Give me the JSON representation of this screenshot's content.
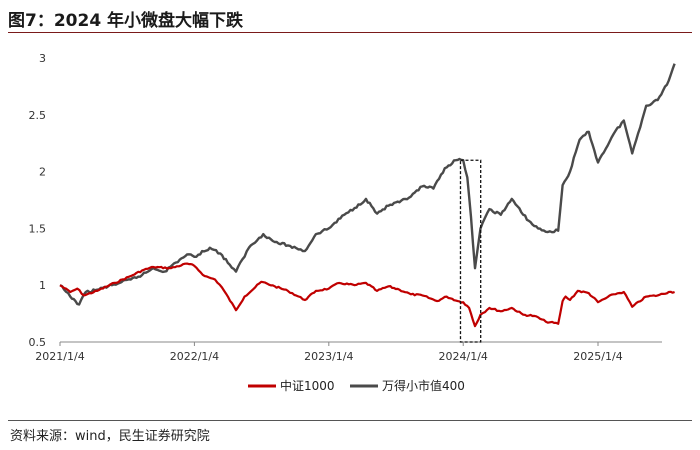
{
  "title": "图7：2024 年小微盘大幅下跌",
  "source": "资料来源：wind，民生证券研究院",
  "chart_data": {
    "type": "line",
    "title": "",
    "xlabel": "",
    "ylabel": "",
    "ylim": [
      0.5,
      3.0
    ],
    "yticks": [
      "0.5",
      "1",
      "1.5",
      "2",
      "2.5",
      "3"
    ],
    "xticks": [
      {
        "label": "2021/1/4",
        "date": "2021-01-04"
      },
      {
        "label": "2022/1/4",
        "date": "2022-01-04"
      },
      {
        "label": "2023/1/4",
        "date": "2023-01-04"
      },
      {
        "label": "2024/1/4",
        "date": "2024-01-04"
      },
      {
        "label": "2025/1/4",
        "date": "2025-01-04"
      }
    ],
    "grid": false,
    "legend": "bottom-center",
    "annotation": "dashed-box around the early-2024 drawdown",
    "series": [
      {
        "name": "中证1000",
        "color": "#c00000",
        "points": [
          [
            "2021-01-04",
            1.0
          ],
          [
            "2021-02-01",
            0.94
          ],
          [
            "2021-02-20",
            0.97
          ],
          [
            "2021-03-10",
            0.91
          ],
          [
            "2021-04-15",
            0.95
          ],
          [
            "2021-06-01",
            1.02
          ],
          [
            "2021-07-15",
            1.08
          ],
          [
            "2021-08-15",
            1.13
          ],
          [
            "2021-09-15",
            1.16
          ],
          [
            "2021-11-01",
            1.15
          ],
          [
            "2021-12-15",
            1.19
          ],
          [
            "2022-01-04",
            1.17
          ],
          [
            "2022-02-01",
            1.08
          ],
          [
            "2022-03-01",
            1.05
          ],
          [
            "2022-03-20",
            0.98
          ],
          [
            "2022-04-27",
            0.78
          ],
          [
            "2022-05-20",
            0.9
          ],
          [
            "2022-07-05",
            1.03
          ],
          [
            "2022-08-10",
            0.99
          ],
          [
            "2022-09-15",
            0.95
          ],
          [
            "2022-10-31",
            0.87
          ],
          [
            "2022-11-30",
            0.95
          ],
          [
            "2023-01-04",
            0.97
          ],
          [
            "2023-02-01",
            1.02
          ],
          [
            "2023-03-15",
            1.0
          ],
          [
            "2023-04-15",
            1.02
          ],
          [
            "2023-05-15",
            0.95
          ],
          [
            "2023-06-15",
            0.99
          ],
          [
            "2023-07-15",
            0.96
          ],
          [
            "2023-08-15",
            0.92
          ],
          [
            "2023-09-15",
            0.91
          ],
          [
            "2023-10-25",
            0.86
          ],
          [
            "2023-11-20",
            0.9
          ],
          [
            "2023-12-20",
            0.86
          ],
          [
            "2024-01-04",
            0.85
          ],
          [
            "2024-01-20",
            0.8
          ],
          [
            "2024-02-05",
            0.64
          ],
          [
            "2024-02-20",
            0.74
          ],
          [
            "2024-03-15",
            0.8
          ],
          [
            "2024-04-15",
            0.77
          ],
          [
            "2024-05-15",
            0.8
          ],
          [
            "2024-06-15",
            0.74
          ],
          [
            "2024-07-15",
            0.73
          ],
          [
            "2024-08-15",
            0.68
          ],
          [
            "2024-09-18",
            0.66
          ],
          [
            "2024-09-30",
            0.86
          ],
          [
            "2024-10-08",
            0.9
          ],
          [
            "2024-10-20",
            0.87
          ],
          [
            "2024-11-10",
            0.95
          ],
          [
            "2024-12-10",
            0.93
          ],
          [
            "2025-01-04",
            0.85
          ],
          [
            "2025-02-15",
            0.92
          ],
          [
            "2025-03-15",
            0.94
          ],
          [
            "2025-04-07",
            0.81
          ],
          [
            "2025-05-15",
            0.9
          ],
          [
            "2025-06-15",
            0.91
          ],
          [
            "2025-07-15",
            0.94
          ],
          [
            "2025-07-31",
            0.94
          ]
        ]
      },
      {
        "name": "万得小市值400",
        "color": "#4a4a4a",
        "points": [
          [
            "2021-01-04",
            1.0
          ],
          [
            "2021-02-01",
            0.9
          ],
          [
            "2021-02-15",
            0.86
          ],
          [
            "2021-02-25",
            0.83
          ],
          [
            "2021-03-15",
            0.94
          ],
          [
            "2021-04-15",
            0.96
          ],
          [
            "2021-05-15",
            0.99
          ],
          [
            "2021-06-15",
            1.02
          ],
          [
            "2021-07-15",
            1.05
          ],
          [
            "2021-08-15",
            1.09
          ],
          [
            "2021-09-15",
            1.15
          ],
          [
            "2021-10-15",
            1.12
          ],
          [
            "2021-11-15",
            1.2
          ],
          [
            "2021-12-15",
            1.27
          ],
          [
            "2022-01-04",
            1.25
          ],
          [
            "2022-02-15",
            1.33
          ],
          [
            "2022-03-15",
            1.28
          ],
          [
            "2022-04-10",
            1.18
          ],
          [
            "2022-04-27",
            1.12
          ],
          [
            "2022-06-01",
            1.33
          ],
          [
            "2022-07-10",
            1.45
          ],
          [
            "2022-08-10",
            1.38
          ],
          [
            "2022-09-15",
            1.35
          ],
          [
            "2022-10-31",
            1.3
          ],
          [
            "2022-11-30",
            1.45
          ],
          [
            "2023-01-04",
            1.5
          ],
          [
            "2023-02-15",
            1.62
          ],
          [
            "2023-03-15",
            1.68
          ],
          [
            "2023-04-15",
            1.76
          ],
          [
            "2023-05-15",
            1.63
          ],
          [
            "2023-06-15",
            1.7
          ],
          [
            "2023-07-15",
            1.73
          ],
          [
            "2023-08-15",
            1.78
          ],
          [
            "2023-09-15",
            1.87
          ],
          [
            "2023-10-15",
            1.85
          ],
          [
            "2023-11-15",
            2.03
          ],
          [
            "2023-12-15",
            2.1
          ],
          [
            "2024-01-04",
            2.1
          ],
          [
            "2024-01-15",
            1.95
          ],
          [
            "2024-01-25",
            1.6
          ],
          [
            "2024-02-05",
            1.15
          ],
          [
            "2024-02-20",
            1.5
          ],
          [
            "2024-03-15",
            1.67
          ],
          [
            "2024-04-15",
            1.62
          ],
          [
            "2024-05-15",
            1.76
          ],
          [
            "2024-06-15",
            1.62
          ],
          [
            "2024-07-15",
            1.52
          ],
          [
            "2024-08-15",
            1.47
          ],
          [
            "2024-09-18",
            1.48
          ],
          [
            "2024-09-30",
            1.88
          ],
          [
            "2024-10-20",
            2.0
          ],
          [
            "2024-11-15",
            2.28
          ],
          [
            "2024-12-10",
            2.35
          ],
          [
            "2025-01-04",
            2.08
          ],
          [
            "2025-02-15",
            2.33
          ],
          [
            "2025-03-15",
            2.45
          ],
          [
            "2025-04-07",
            2.16
          ],
          [
            "2025-05-15",
            2.58
          ],
          [
            "2025-06-15",
            2.63
          ],
          [
            "2025-07-15",
            2.8
          ],
          [
            "2025-07-31",
            2.95
          ]
        ]
      }
    ]
  }
}
